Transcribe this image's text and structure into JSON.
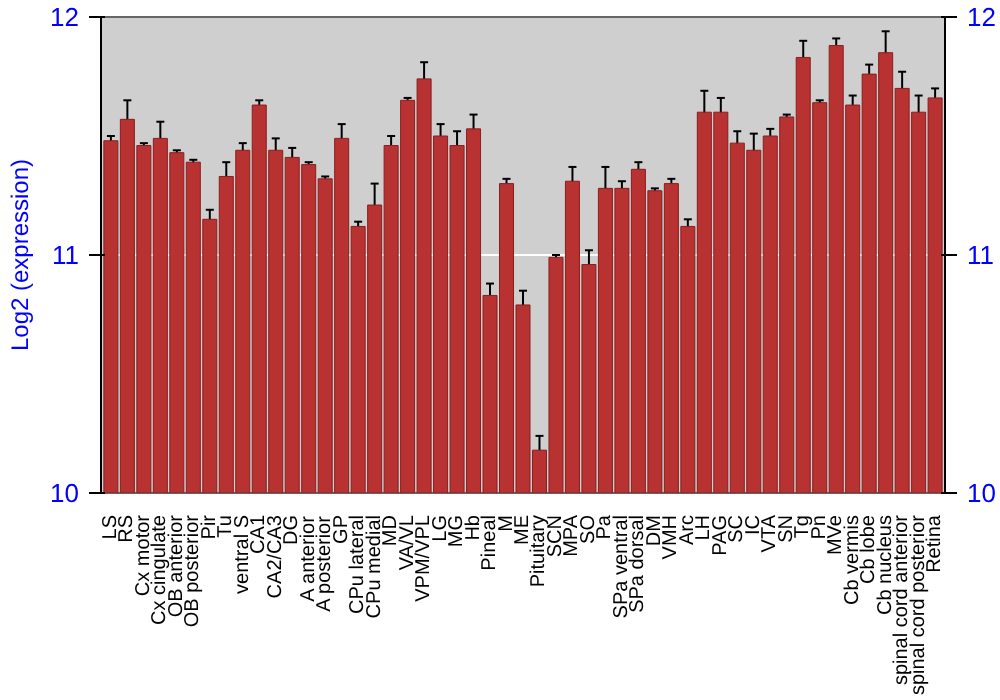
{
  "chart_data": {
    "type": "bar",
    "ylabel": "Log2 (expression)",
    "categories": [
      "LS",
      "RS",
      "Cx motor",
      "Cx cingulate",
      "OB anterior",
      "OB posterior",
      "Pir",
      "Tu",
      "ventral S",
      "CA1",
      "CA2/CA3",
      "DG",
      "A anterior",
      "A posterior",
      "GP",
      "CPu lateral",
      "CPu medial",
      "MD",
      "VA/VL",
      "VPM/VPL",
      "LG",
      "MG",
      "Hb",
      "Pineal",
      "M",
      "ME",
      "Pituitary",
      "SCN",
      "MPA",
      "SO",
      "Pa",
      "SPa ventral",
      "SPa dorsal",
      "DM",
      "VMH",
      "Arc",
      "LH",
      "PAG",
      "SC",
      "IC",
      "VTA",
      "SN",
      "Tg",
      "Pn",
      "MVe",
      "Cb vermis",
      "Cb lobe",
      "Cb nucleus",
      "spinal cord anterior",
      "spinal cord posterior",
      "Retina"
    ],
    "values": [
      11.48,
      11.57,
      11.46,
      11.49,
      11.43,
      11.39,
      11.15,
      11.33,
      11.44,
      11.63,
      11.44,
      11.41,
      11.38,
      11.32,
      11.49,
      11.12,
      11.21,
      11.46,
      11.65,
      11.74,
      11.5,
      11.46,
      11.53,
      10.83,
      11.3,
      10.79,
      10.18,
      10.99,
      11.31,
      10.96,
      11.28,
      11.28,
      11.36,
      11.27,
      11.3,
      11.12,
      11.6,
      11.6,
      11.47,
      11.44,
      11.5,
      11.58,
      11.83,
      11.64,
      11.88,
      11.63,
      11.76,
      11.85,
      11.7,
      11.6,
      11.66
    ],
    "errors": [
      0.02,
      0.08,
      0.01,
      0.07,
      0.01,
      0.01,
      0.04,
      0.06,
      0.03,
      0.02,
      0.05,
      0.04,
      0.01,
      0.01,
      0.06,
      0.02,
      0.09,
      0.04,
      0.01,
      0.07,
      0.05,
      0.06,
      0.06,
      0.05,
      0.02,
      0.06,
      0.06,
      0.01,
      0.06,
      0.06,
      0.09,
      0.03,
      0.03,
      0.01,
      0.02,
      0.03,
      0.09,
      0.06,
      0.05,
      0.07,
      0.03,
      0.01,
      0.07,
      0.01,
      0.03,
      0.04,
      0.04,
      0.09,
      0.07,
      0.07,
      0.04
    ],
    "color": "#b83232",
    "ylim": [
      10,
      12
    ],
    "yticks": [
      10,
      11,
      12
    ],
    "y2lim": [
      10,
      12
    ],
    "y2ticks": [
      10,
      11,
      12
    ],
    "grid": "y"
  }
}
